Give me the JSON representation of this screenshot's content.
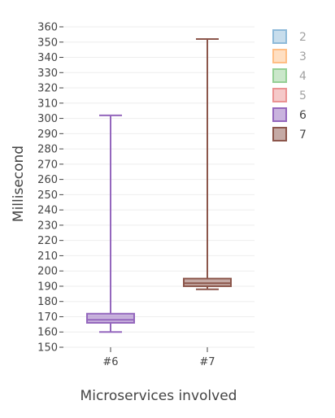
{
  "chart_data": {
    "type": "box",
    "title": "",
    "xlabel": "Microservices involved",
    "ylabel": "Millisecond",
    "ylim": [
      150,
      360
    ],
    "yticks": [
      150,
      160,
      170,
      180,
      190,
      200,
      210,
      220,
      230,
      240,
      250,
      260,
      270,
      280,
      290,
      300,
      310,
      320,
      330,
      340,
      350,
      360
    ],
    "categories": [
      "#6",
      "#7"
    ],
    "grid": true,
    "legend_position": "top-right",
    "legend": [
      {
        "label": "2",
        "color": "#1f77b4",
        "active": false
      },
      {
        "label": "3",
        "color": "#ff7f0e",
        "active": false
      },
      {
        "label": "4",
        "color": "#2ca02c",
        "active": false
      },
      {
        "label": "5",
        "color": "#d62728",
        "active": false
      },
      {
        "label": "6",
        "color": "#9467bd",
        "active": true
      },
      {
        "label": "7",
        "color": "#8c564b",
        "active": true
      }
    ],
    "series": [
      {
        "name": "6",
        "category": "#6",
        "color": "#9467bd",
        "min": 160,
        "q1": 166,
        "median": 168,
        "q3": 172,
        "max": 302
      },
      {
        "name": "7",
        "category": "#7",
        "color": "#8c564b",
        "min": 188,
        "q1": 190,
        "median": 192,
        "q3": 195,
        "max": 352
      }
    ]
  }
}
